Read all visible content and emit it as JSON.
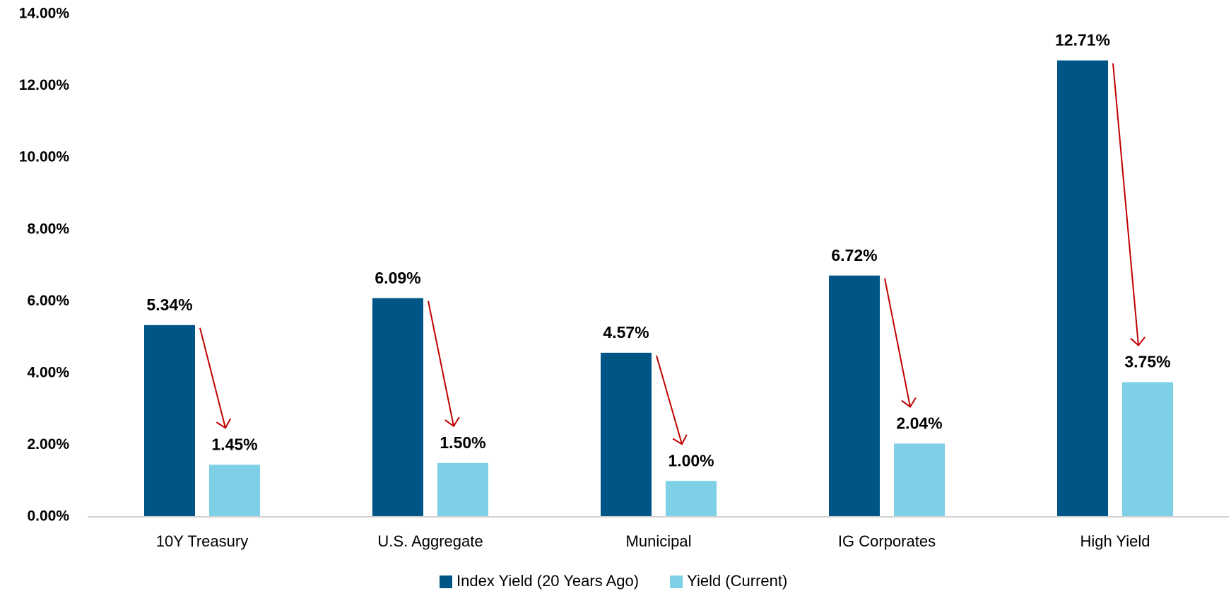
{
  "chart_data": {
    "type": "bar",
    "categories": [
      "10Y Treasury",
      "U.S. Aggregate",
      "Municipal",
      "IG Corporates",
      "High Yield"
    ],
    "series": [
      {
        "name": "Index Yield (20 Years Ago)",
        "color": "#005587",
        "values": [
          5.34,
          6.09,
          4.57,
          6.72,
          12.71
        ],
        "value_labels": [
          "5.34%",
          "6.09%",
          "4.57%",
          "6.72%",
          "12.71%"
        ]
      },
      {
        "name": "Yield (Current)",
        "color": "#7dd0e6",
        "values": [
          1.45,
          1.5,
          1.0,
          2.04,
          3.75
        ],
        "value_labels": [
          "1.45%",
          "1.50%",
          "1.00%",
          "2.04%",
          "3.75%"
        ]
      }
    ],
    "ylim": [
      0,
      14
    ],
    "yticks": [
      {
        "value": 0,
        "label": "0.00%"
      },
      {
        "value": 2,
        "label": "2.00%"
      },
      {
        "value": 4,
        "label": "4.00%"
      },
      {
        "value": 6,
        "label": "6.00%"
      },
      {
        "value": 8,
        "label": "8.00%"
      },
      {
        "value": 10,
        "label": "10.00%"
      },
      {
        "value": 12,
        "label": "12.00%"
      },
      {
        "value": 14,
        "label": "14.00%"
      }
    ],
    "grid": false,
    "legend": "bottom"
  }
}
